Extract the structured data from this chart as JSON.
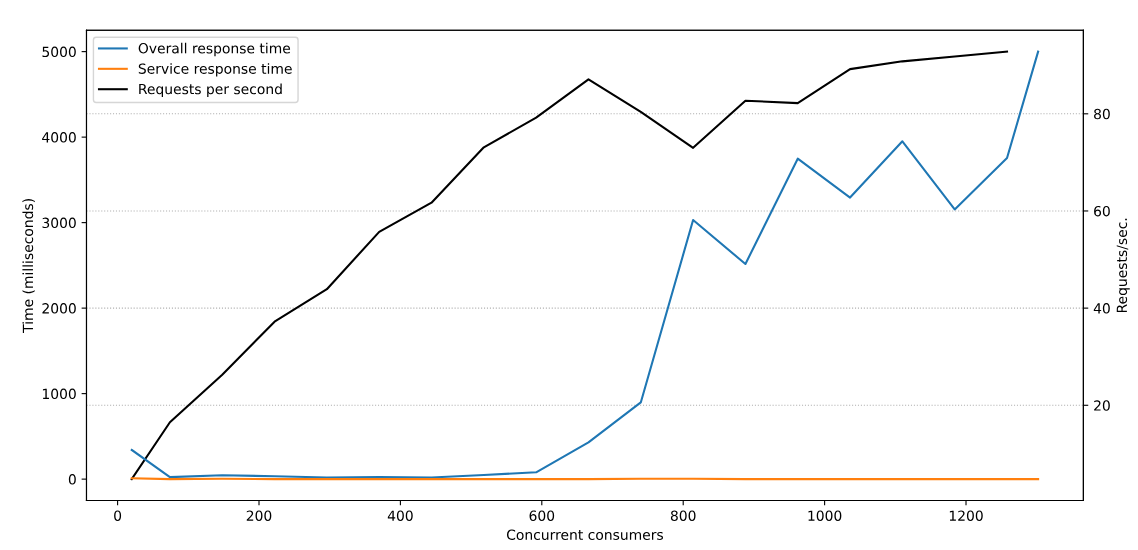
{
  "chart_data": {
    "type": "line",
    "xlabel": "Concurrent consumers",
    "ylabel": "Time (milliseconds)",
    "y2label": "Requests/sec.",
    "x": [
      20,
      74,
      148,
      222,
      296,
      370,
      444,
      518,
      592,
      666,
      740,
      814,
      888,
      962,
      1036,
      1110,
      1184,
      1258,
      1302
    ],
    "series": [
      {
        "name": "Overall response time",
        "color": "#1f77b4",
        "values": [
          341,
          23,
          45,
          34,
          19,
          23,
          19,
          49,
          80,
          430,
          897,
          3030,
          2516,
          3748,
          3293,
          3951,
          3154,
          3756,
          5000
        ]
      },
      {
        "name": "Service response time",
        "color": "#ff7f0e",
        "values": [
          10,
          0,
          5,
          0,
          0,
          0,
          0,
          0,
          0,
          0,
          5,
          5,
          0,
          0,
          0,
          0,
          0,
          0,
          0
        ]
      },
      {
        "name": "Requests per second",
        "color": "#000000",
        "axis": "y2",
        "values": [
          4.8,
          16.5,
          26.3,
          37.2,
          43.9,
          55.7,
          61.7,
          73.1,
          79.2,
          87.1,
          80.4,
          73.0,
          82.7,
          82.2,
          89.2,
          90.8,
          91.8,
          92.8,
          null
        ]
      }
    ],
    "xlim": [
      -44,
      1366
    ],
    "xticks": [
      0,
      200,
      400,
      600,
      800,
      1000,
      1200
    ],
    "ylim": [
      -250,
      5250
    ],
    "yticks": [
      0,
      1000,
      2000,
      3000,
      4000,
      5000
    ],
    "y2lim": [
      0.4,
      97.2
    ],
    "y2ticks": [
      20,
      40,
      60,
      80
    ],
    "grid": "y2",
    "legend": "top left",
    "line_style": "solid",
    "marker": "none"
  }
}
